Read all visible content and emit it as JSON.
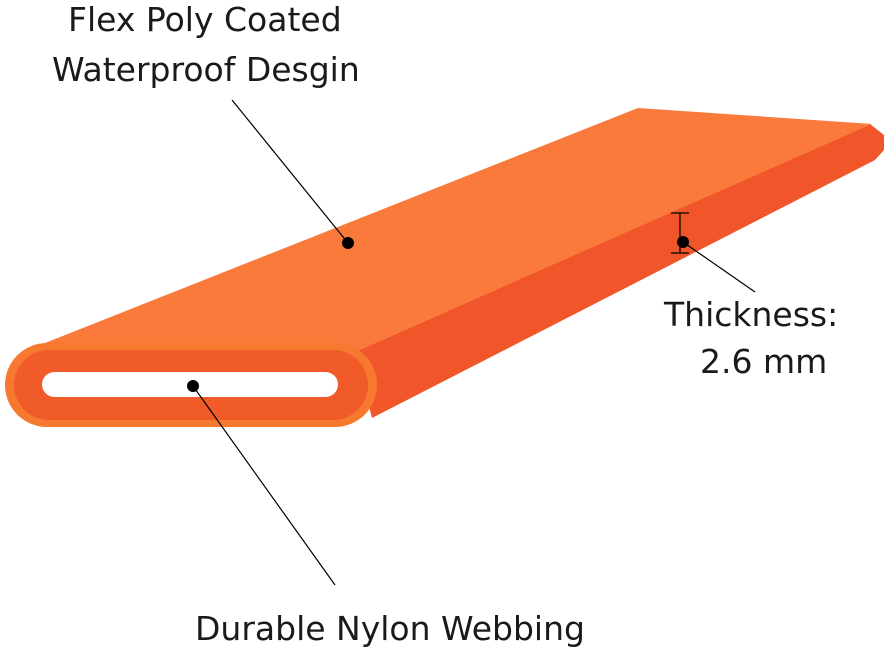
{
  "labels": {
    "coating_line1": "Flex Poly Coated",
    "coating_line2": "Waterproof Desgin",
    "thickness_title": "Thickness:",
    "thickness_value": "2.6 mm",
    "webbing": "Durable Nylon Webbing"
  },
  "colors": {
    "top_face": "#f97a3a",
    "side_face": "#f0562a",
    "cap_outer": "#f7782f",
    "cap_inner": "#f15a29",
    "slot": "#ffffff",
    "callout": "#000000"
  }
}
